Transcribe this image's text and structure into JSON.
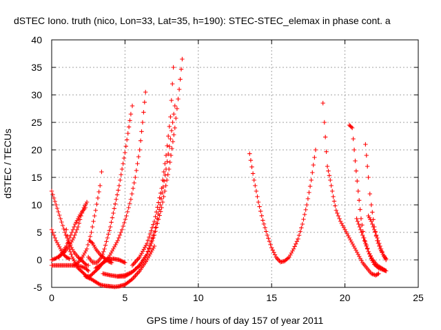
{
  "chart_data": {
    "type": "scatter",
    "title": "dSTEC Iono. truth (nico, Lon=33, Lat=35, h=190): STEC-STEC_elemax in phase cont. a",
    "xlabel": "GPS time / hours of day 157 of year 2011",
    "ylabel": "dSTEC  / TECUs",
    "xlim": [
      0,
      25
    ],
    "ylim": [
      -5,
      40
    ],
    "xticks": [
      0,
      5,
      10,
      15,
      20,
      25
    ],
    "yticks": [
      -5,
      0,
      5,
      10,
      15,
      20,
      25,
      30,
      35,
      40
    ],
    "grid": true,
    "marker": "plus",
    "color": "#ff0000",
    "series": [
      {
        "x": [
          0.0,
          0.3,
          0.6,
          0.9,
          1.2,
          1.5,
          1.8,
          2.0,
          2.2,
          2.4,
          2.5
        ],
        "y": [
          12.5,
          10.0,
          7.5,
          5.0,
          3.0,
          1.5,
          0.5,
          0.0,
          -0.5,
          -1.0,
          -1.0
        ]
      },
      {
        "x": [
          0.0,
          0.3,
          0.6,
          0.8,
          1.0,
          1.2
        ],
        "y": [
          5.5,
          3.5,
          2.0,
          1.0,
          0.5,
          0.2
        ]
      },
      {
        "x": [
          0.0,
          0.3,
          0.6,
          0.9,
          1.2,
          1.5,
          1.8,
          2.0,
          2.2,
          2.4
        ],
        "y": [
          0.0,
          0.3,
          0.8,
          1.5,
          2.5,
          4.0,
          6.0,
          8.0,
          9.5,
          10.5
        ]
      },
      {
        "x": [
          0.0,
          0.5,
          1.0,
          1.5,
          2.0,
          2.3,
          2.5
        ],
        "y": [
          -1.0,
          -1.0,
          -1.0,
          -1.0,
          -1.2,
          -1.5,
          -2.0
        ]
      },
      {
        "x": [
          0.5,
          1.0,
          1.3,
          1.6,
          2.0,
          2.3
        ],
        "y": [
          0.5,
          2.5,
          4.5,
          6.5,
          8.5,
          9.5
        ]
      },
      {
        "x": [
          1.0,
          1.2,
          1.4,
          1.6,
          1.8,
          2.0,
          2.2,
          2.4,
          2.6,
          2.8,
          3.0,
          3.2,
          3.5,
          3.8,
          4.2,
          4.6,
          5.0
        ],
        "y": [
          5.5,
          2.0,
          0.5,
          -0.5,
          -1.5,
          -2.0,
          -2.5,
          -3.0,
          -3.0,
          -2.5,
          -2.0,
          -1.5,
          -0.5,
          0.0,
          0.2,
          0.0,
          -0.5
        ]
      },
      {
        "x": [
          1.5,
          1.8,
          2.1,
          2.4,
          2.7,
          3.0,
          3.3,
          3.4
        ],
        "y": [
          -1.0,
          -0.5,
          0.5,
          2.0,
          5.0,
          9.0,
          13.5,
          16.0
        ]
      },
      {
        "x": [
          2.3,
          2.7,
          3.0,
          3.3,
          3.6,
          4.0,
          4.3,
          4.6,
          5.0,
          5.5,
          6.0,
          6.5,
          7.0
        ],
        "y": [
          -3.0,
          -3.5,
          -4.0,
          -4.5,
          -4.7,
          -4.8,
          -4.9,
          -4.8,
          -4.5,
          -3.5,
          -2.0,
          0.0,
          2.5
        ]
      },
      {
        "x": [
          2.5,
          2.8,
          3.1,
          3.4,
          3.6,
          3.8,
          4.0,
          4.2,
          4.4,
          4.6,
          4.8,
          5.0,
          5.2,
          5.4,
          5.5
        ],
        "y": [
          0.5,
          -0.5,
          -0.5,
          0.5,
          2.0,
          4.0,
          6.0,
          8.5,
          11.0,
          13.5,
          16.5,
          19.5,
          23.0,
          26.5,
          28.0
        ]
      },
      {
        "x": [
          2.6,
          2.8,
          3.0,
          3.3,
          3.6,
          3.9,
          4.1
        ],
        "y": [
          3.5,
          3.0,
          2.0,
          1.0,
          0.3,
          -0.3,
          -0.5
        ]
      },
      {
        "x": [
          3.0,
          3.3,
          3.6,
          3.9,
          4.2,
          4.5,
          4.8,
          5.1,
          5.4,
          5.7,
          6.0,
          6.2,
          6.4
        ],
        "y": [
          -1.5,
          -1.0,
          -0.3,
          0.5,
          2.0,
          3.5,
          5.5,
          8.0,
          11.0,
          15.0,
          20.0,
          25.0,
          30.5
        ]
      },
      {
        "x": [
          3.5,
          4.0,
          4.5,
          5.0,
          5.5,
          6.0,
          6.5,
          7.0,
          7.4,
          7.8,
          8.1,
          8.4
        ],
        "y": [
          -2.5,
          -2.8,
          -3.0,
          -2.8,
          -2.2,
          -1.0,
          1.0,
          5.0,
          10.0,
          16.5,
          22.0,
          28.0
        ]
      },
      {
        "x": [
          4.5,
          5.0,
          5.5,
          6.0,
          6.5,
          7.0,
          7.5,
          8.0,
          8.4,
          8.7,
          8.9
        ],
        "y": [
          -3.0,
          -3.0,
          -2.2,
          -1.0,
          1.0,
          4.5,
          9.5,
          16.5,
          24.0,
          31.0,
          36.5
        ]
      },
      {
        "x": [
          5.5,
          6.0,
          6.5,
          7.0,
          7.5,
          7.8,
          8.1,
          8.3
        ],
        "y": [
          -1.0,
          0.5,
          3.0,
          7.0,
          13.0,
          19.0,
          26.0,
          35.0
        ]
      },
      {
        "x": [
          13.5,
          13.8,
          14.1,
          14.4,
          14.7,
          15.0,
          15.3,
          15.6,
          15.9,
          16.2,
          16.5,
          16.8,
          17.1,
          17.4,
          17.7,
          18.0
        ],
        "y": [
          19.3,
          14.5,
          10.5,
          7.2,
          4.5,
          2.2,
          0.5,
          -0.4,
          -0.2,
          0.5,
          2.0,
          3.8,
          6.5,
          10.0,
          14.5,
          20.0
        ]
      },
      {
        "x": [
          18.5,
          18.6,
          18.8,
          19.0,
          19.2,
          19.4,
          19.7,
          20.0,
          20.3,
          20.6,
          20.9,
          21.2,
          21.5,
          21.8,
          22.1,
          22.3
        ],
        "y": [
          28.5,
          25.0,
          17.0,
          14.5,
          11.5,
          9.0,
          7.0,
          5.5,
          4.0,
          2.5,
          1.0,
          -0.5,
          -1.5,
          -2.5,
          -2.8,
          -2.5
        ]
      },
      {
        "x": [
          20.3,
          20.5,
          20.7,
          20.9,
          21.1,
          21.3,
          21.6,
          21.9,
          22.2,
          22.5,
          22.8
        ],
        "y": [
          24.5,
          24.0,
          18.0,
          12.5,
          7.5,
          4.0,
          1.5,
          0.0,
          -1.0,
          -1.5,
          -2.0
        ]
      },
      {
        "x": [
          20.8,
          21.0,
          21.2,
          21.4,
          21.6,
          21.8,
          22.0,
          22.3,
          22.6,
          22.8
        ],
        "y": [
          7.5,
          6.0,
          4.5,
          3.0,
          1.5,
          0.2,
          -0.8,
          -1.5,
          -1.8,
          -2.0
        ]
      },
      {
        "x": [
          21.4,
          21.6,
          21.7,
          21.8,
          22.0,
          22.2,
          22.4,
          22.6,
          22.8
        ],
        "y": [
          21.0,
          15.0,
          12.0,
          10.0,
          6.0,
          3.5,
          2.0,
          1.0,
          0.2
        ]
      },
      {
        "x": [
          21.6,
          21.8,
          22.0,
          22.2,
          22.4,
          22.6,
          22.8
        ],
        "y": [
          8.0,
          7.0,
          5.5,
          4.0,
          2.5,
          1.0,
          0.0
        ]
      }
    ]
  }
}
